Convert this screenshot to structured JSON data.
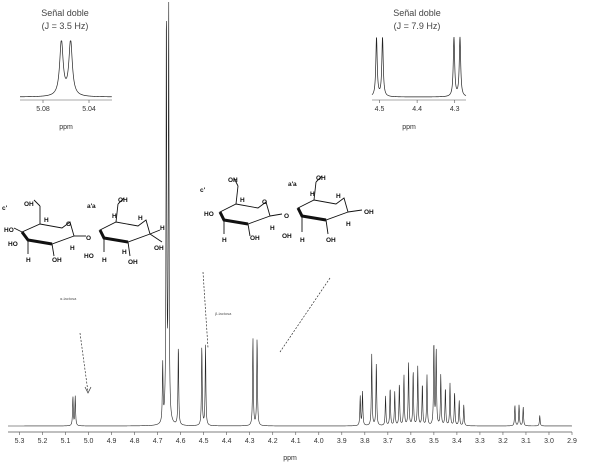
{
  "chart_data": {
    "type": "line",
    "main": {
      "xlabel": "ppm",
      "x_reversed": true,
      "xlim": [
        5.35,
        2.9
      ],
      "ticks": [
        5.3,
        5.2,
        5.1,
        5.0,
        4.9,
        4.8,
        4.7,
        4.6,
        4.5,
        4.4,
        4.3,
        4.2,
        4.1,
        4.0,
        3.9,
        3.8,
        3.7,
        3.6,
        3.5,
        3.4,
        3.3,
        3.2,
        3.1,
        3.0,
        2.9
      ],
      "tick_labels": [
        "5.3",
        "5.2",
        "5.1",
        "5.0",
        "4.9",
        "4.8",
        "4.7",
        "4.6",
        "4.5",
        "4.4",
        "4.3",
        "4.2",
        "4.1",
        "4.0",
        "3.9",
        "3.8",
        "3.7",
        "3.6",
        "3.5",
        "3.4",
        "3.3",
        "3.2",
        "3.1",
        "3.0",
        "2.9"
      ],
      "peaks": [
        {
          "ppm": 5.068,
          "h": 0.07
        },
        {
          "ppm": 5.058,
          "h": 0.07
        },
        {
          "ppm": 4.678,
          "h": 0.14
        },
        {
          "ppm": 4.662,
          "h": 1.0
        },
        {
          "ppm": 4.652,
          "h": 1.0
        },
        {
          "ppm": 4.61,
          "h": 0.19
        },
        {
          "ppm": 4.508,
          "h": 0.19
        },
        {
          "ppm": 4.492,
          "h": 0.19
        },
        {
          "ppm": 4.286,
          "h": 0.21
        },
        {
          "ppm": 4.268,
          "h": 0.21
        },
        {
          "ppm": 3.82,
          "h": 0.07
        },
        {
          "ppm": 3.81,
          "h": 0.08
        },
        {
          "ppm": 3.77,
          "h": 0.17
        },
        {
          "ppm": 3.75,
          "h": 0.15
        },
        {
          "ppm": 3.71,
          "h": 0.07
        },
        {
          "ppm": 3.69,
          "h": 0.09
        },
        {
          "ppm": 3.67,
          "h": 0.08
        },
        {
          "ppm": 3.65,
          "h": 0.1
        },
        {
          "ppm": 3.63,
          "h": 0.12
        },
        {
          "ppm": 3.61,
          "h": 0.15
        },
        {
          "ppm": 3.59,
          "h": 0.13
        },
        {
          "ppm": 3.57,
          "h": 0.14
        },
        {
          "ppm": 3.55,
          "h": 0.1
        },
        {
          "ppm": 3.53,
          "h": 0.12
        },
        {
          "ppm": 3.5,
          "h": 0.2
        },
        {
          "ppm": 3.49,
          "h": 0.18
        },
        {
          "ppm": 3.47,
          "h": 0.12
        },
        {
          "ppm": 3.45,
          "h": 0.09
        },
        {
          "ppm": 3.43,
          "h": 0.1
        },
        {
          "ppm": 3.41,
          "h": 0.08
        },
        {
          "ppm": 3.39,
          "h": 0.06
        },
        {
          "ppm": 3.37,
          "h": 0.05
        },
        {
          "ppm": 3.148,
          "h": 0.05
        },
        {
          "ppm": 3.13,
          "h": 0.05
        },
        {
          "ppm": 3.112,
          "h": 0.045
        },
        {
          "ppm": 3.04,
          "h": 0.025
        }
      ],
      "annotations": [
        "α-lactosa",
        "β-lactosa"
      ]
    },
    "insets": [
      {
        "title": "Señal doble",
        "coupling": "(J = 3.5 Hz)",
        "xlabel": "ppm",
        "xlim": [
          5.1,
          5.02
        ],
        "ticks": [
          5.08,
          5.04
        ],
        "tick_labels": [
          "5.08",
          "5.04"
        ],
        "peaks": [
          {
            "ppm": 5.064,
            "h": 1.0
          },
          {
            "ppm": 5.056,
            "h": 1.0
          }
        ]
      },
      {
        "title": "Señal doble",
        "coupling": "(J = 7.9 Hz)",
        "xlabel": "ppm",
        "xlim": [
          4.52,
          4.27
        ],
        "ticks": [
          4.5,
          4.4,
          4.3
        ],
        "tick_labels": [
          "4.5",
          "4.4",
          "4.3"
        ],
        "peaks": [
          {
            "ppm": 4.508,
            "h": 1.0
          },
          {
            "ppm": 4.492,
            "h": 1.0
          },
          {
            "ppm": 4.302,
            "h": 1.0
          },
          {
            "ppm": 4.286,
            "h": 1.0
          }
        ]
      }
    ]
  },
  "molecules": {
    "alpha": {
      "ring_labels": [
        "OH",
        "O",
        "HO",
        "HO",
        "H",
        "H",
        "OH",
        "H",
        "O",
        "OH",
        "H",
        "H",
        "HO",
        "H",
        "H",
        "OH",
        "OH",
        "H"
      ],
      "markers": [
        "c'",
        "a'",
        "a"
      ]
    },
    "beta": {
      "ring_labels": [
        "OH",
        "O",
        "HO",
        "H",
        "H",
        "OH",
        "H",
        "O",
        "OH",
        "OH",
        "OH",
        "H",
        "H",
        "H",
        "H",
        "OH"
      ],
      "markers": [
        "c'",
        "a'",
        "a"
      ]
    }
  }
}
